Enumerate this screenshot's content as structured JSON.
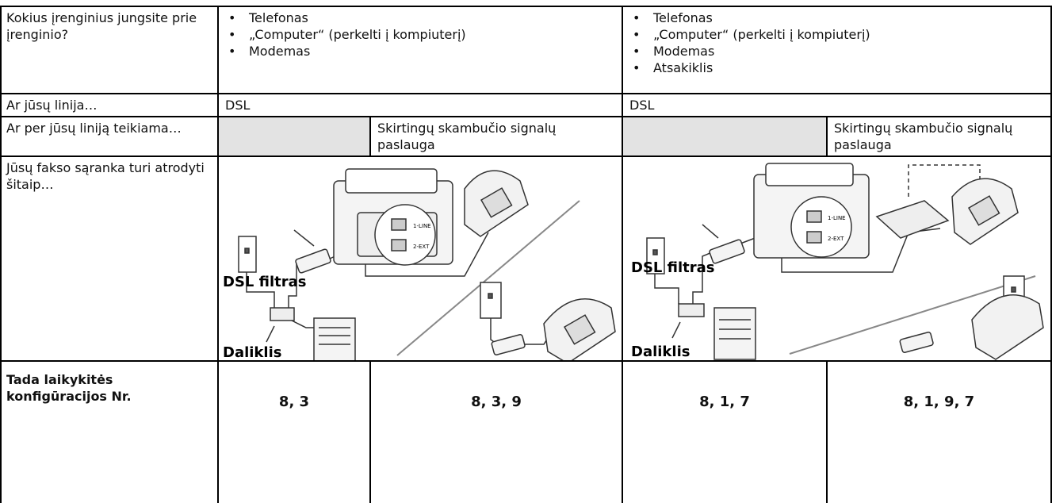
{
  "row_devices": {
    "label": "Kokius įrenginius jungsite prie įrenginio?",
    "left": [
      "Telefonas",
      "„Computer“ (perkelti į kompiuterį)",
      "Modemas"
    ],
    "right": [
      "Telefonas",
      "„Computer“ (perkelti į kompiuterį)",
      "Modemas",
      "Atsakiklis"
    ]
  },
  "row_line": {
    "label": "Ar jūsų linija…",
    "left": "DSL",
    "right": "DSL"
  },
  "row_service": {
    "label": "Ar per jūsų liniją teikiama…",
    "left": "Skirtingų skambučio signalų paslauga",
    "right": "Skirtingų skambučio signalų paslauga"
  },
  "row_setup": {
    "label": "Jūsų fakso sąranka turi atrodyti šitaip…",
    "left_diagram": {
      "filter": "DSL filtras",
      "splitter": "Daliklis",
      "port1": "1-LINE",
      "port2": "2-EXT"
    },
    "right_diagram": {
      "filter": "DSL filtras",
      "splitter": "Daliklis",
      "port1": "1-LINE",
      "port2": "2-EXT"
    }
  },
  "row_config": {
    "label": "Tada laikykitės konfigūracijos Nr.",
    "values": [
      "8, 3",
      "8, 3, 9",
      "8, 1, 7",
      "8, 1, 9, 7"
    ]
  }
}
